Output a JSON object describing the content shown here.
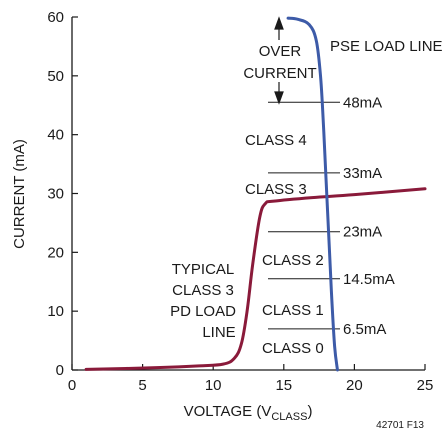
{
  "chart_data": {
    "type": "line",
    "xlabel": "VOLTAGE (V",
    "xlabel_sub": "CLASS",
    "xlabel_close": ")",
    "ylabel": "CURRENT (mA)",
    "xlim": [
      0,
      25
    ],
    "ylim": [
      0,
      60
    ],
    "x_ticks": [
      0,
      5,
      10,
      15,
      20,
      25
    ],
    "y_ticks": [
      0,
      10,
      20,
      30,
      40,
      50,
      60
    ],
    "grid": false,
    "colors": {
      "pse": "#3d5ba8",
      "pd": "#8a1a3a",
      "axis": "#1a1a1a"
    },
    "series": [
      {
        "name": "PSE LOAD LINE",
        "x": [
          15.3,
          16.0,
          16.8,
          17.3,
          17.6,
          17.8,
          18.0,
          18.2,
          18.4,
          18.6,
          18.8
        ],
        "y": [
          59.8,
          59.6,
          58.7,
          56.0,
          50.0,
          42.0,
          32.0,
          22.0,
          12.0,
          4.0,
          0.0
        ]
      },
      {
        "name": "TYPICAL CLASS 3 PD LOAD LINE",
        "x": [
          1.0,
          6.0,
          9.0,
          10.7,
          11.5,
          12.0,
          12.4,
          12.8,
          13.3,
          13.7,
          14.3,
          17.0,
          20.0,
          25.0
        ],
        "y": [
          0.1,
          0.4,
          0.7,
          1.0,
          2.0,
          4.5,
          10.0,
          18.0,
          26.0,
          28.3,
          28.7,
          29.3,
          29.8,
          30.8
        ]
      }
    ],
    "thresholds": [
      {
        "label": "48mA",
        "y": 45.5
      },
      {
        "label": "33mA",
        "y": 33.5
      },
      {
        "label": "23mA",
        "y": 23.5
      },
      {
        "label": "14.5mA",
        "y": 15.5
      },
      {
        "label": "6.5mA",
        "y": 7.0
      }
    ],
    "class_labels": [
      "CLASS 4",
      "CLASS 3",
      "CLASS 2",
      "CLASS 1",
      "CLASS 0"
    ],
    "over_current": [
      "OVER",
      "CURRENT"
    ],
    "pse_label": "PSE LOAD LINE",
    "pd_label": [
      "TYPICAL",
      "CLASS 3",
      "PD LOAD",
      "LINE"
    ],
    "footnote": "42701 F13"
  }
}
